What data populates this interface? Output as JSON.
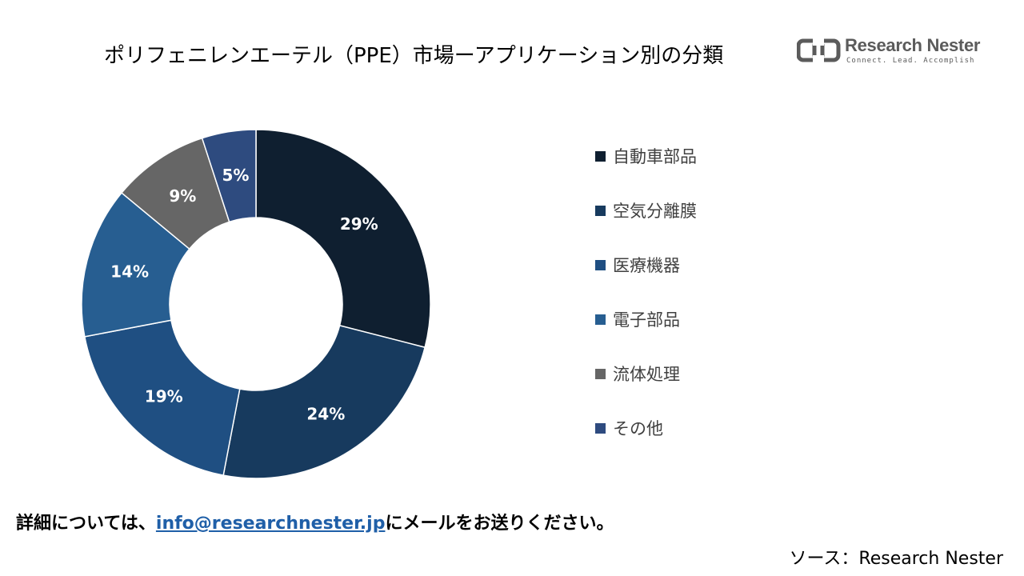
{
  "title": "ポリフェニレンエーテル（PPE）市場ーアプリケーション別の分類",
  "logo": {
    "name": "Research Nester",
    "tagline": "Connect. Lead. Accomplish"
  },
  "chart_data": {
    "type": "pie",
    "style": "donut",
    "categories": [
      "自動車部品",
      "空気分離膜",
      "医療機器",
      "電子部品",
      "流体処理",
      "その他"
    ],
    "values": [
      29,
      24,
      19,
      14,
      9,
      5
    ],
    "data_labels": [
      "29%",
      "24%",
      "19%",
      "14%",
      "9%",
      "5%"
    ],
    "unit": "%",
    "colors": [
      "#0f1f30",
      "#173a5e",
      "#1f4f82",
      "#275e91",
      "#666666",
      "#2e4b7f"
    ],
    "start_angle": "12 o'clock",
    "direction": "clockwise",
    "legend_position": "right"
  },
  "footer": {
    "prefix": "詳細については、",
    "email": "info@researchnester.jp",
    "suffix": "にメールをお送りください。"
  },
  "source": "ソース：Research Nester"
}
